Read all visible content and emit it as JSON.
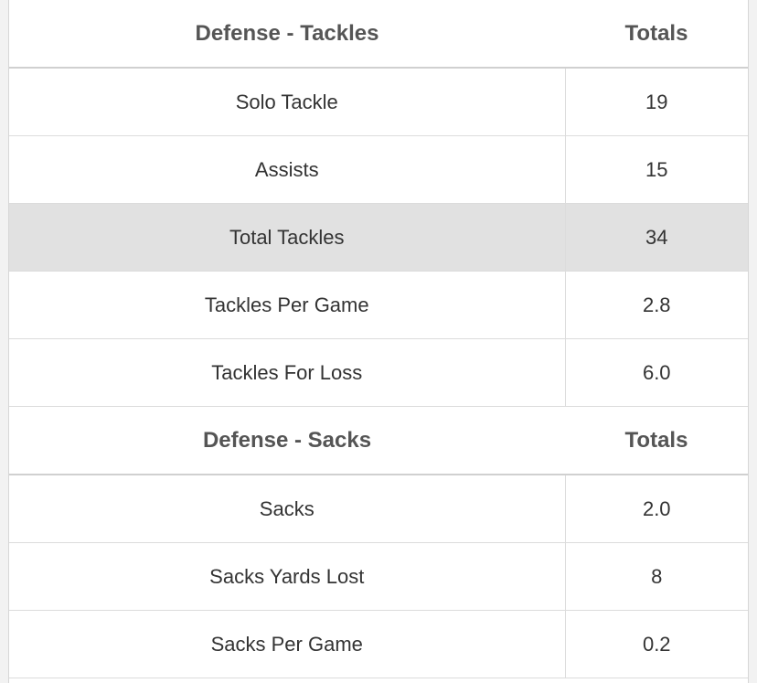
{
  "sections": [
    {
      "title": "Defense - Tackles",
      "totals_label": "Totals",
      "rows": [
        {
          "label": "Solo Tackle",
          "value": "19"
        },
        {
          "label": "Assists",
          "value": "15"
        },
        {
          "label": "Total Tackles",
          "value": "34"
        },
        {
          "label": "Tackles Per Game",
          "value": "2.8"
        },
        {
          "label": "Tackles For Loss",
          "value": "6.0"
        }
      ]
    },
    {
      "title": "Defense - Sacks",
      "totals_label": "Totals",
      "rows": [
        {
          "label": "Sacks",
          "value": "2.0"
        },
        {
          "label": "Sacks Yards Lost",
          "value": "8"
        },
        {
          "label": "Sacks Per Game",
          "value": "0.2"
        }
      ]
    }
  ],
  "colors": {
    "highlight_row": "#e1e1e1",
    "text": "#333333",
    "header_text": "#555555"
  }
}
